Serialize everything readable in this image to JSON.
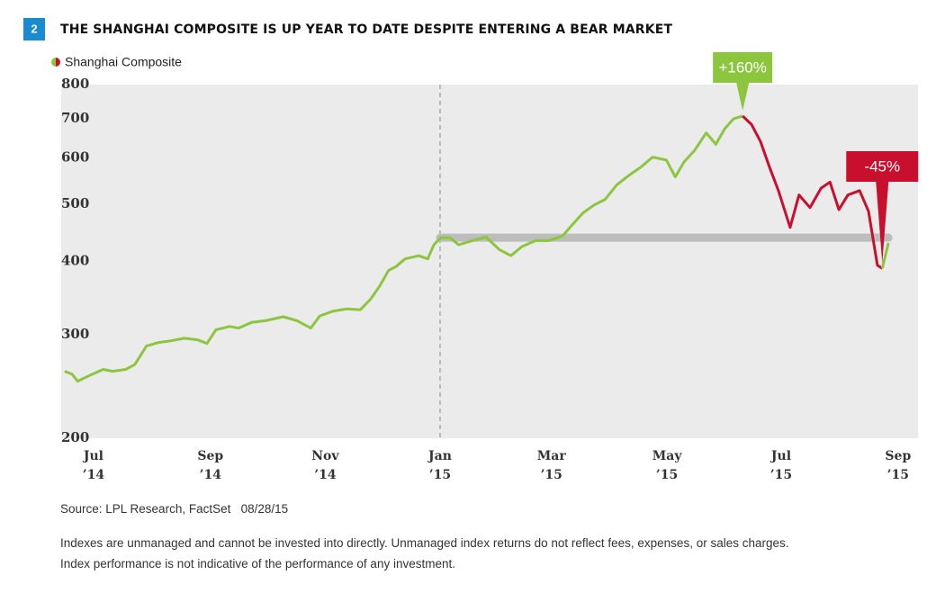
{
  "chart_data": {
    "type": "line",
    "badge": "2",
    "title": "THE SHANGHAI COMPOSITE IS UP YEAR TO DATE DESPITE ENTERING A BEAR MARKET",
    "log_scale": true,
    "grid": false,
    "legend": "top-left",
    "xlim": [
      2014.449,
      2015.695
    ],
    "ylim": [
      200,
      800
    ],
    "yticks": [
      200,
      300,
      400,
      500,
      600,
      700,
      800
    ],
    "xticks": [
      {
        "value": 2014.496,
        "label": "Jul\n’14"
      },
      {
        "value": 2014.666,
        "label": "Sep\n’14"
      },
      {
        "value": 2014.833,
        "label": "Nov\n’14"
      },
      {
        "value": 2015.0,
        "label": "Jan\n’15"
      },
      {
        "value": 2015.162,
        "label": "Mar\n’15"
      },
      {
        "value": 2015.33,
        "label": "May\n’15"
      },
      {
        "value": 2015.496,
        "label": "Jul\n’15"
      },
      {
        "value": 2015.666,
        "label": "Sep\n’15"
      }
    ],
    "reference_x": 2015.0,
    "series": [
      {
        "name": "Shanghai Composite",
        "color": [
          "#8cc63f",
          "#c8102e"
        ],
        "x": [
          2014.454,
          2014.465,
          2014.473,
          2014.491,
          2014.51,
          2014.524,
          2014.543,
          2014.556,
          2014.573,
          2014.59,
          2014.609,
          2014.628,
          2014.648,
          2014.661,
          2014.674,
          2014.694,
          2014.707,
          2014.726,
          2014.746,
          2014.772,
          2014.792,
          2014.812,
          2014.825,
          2014.844,
          2014.864,
          2014.884,
          2014.899,
          2014.912,
          2014.925,
          2014.936,
          2014.949,
          2014.969,
          2014.982,
          2014.991,
          2015.001,
          2015.014,
          2015.027,
          2015.047,
          2015.067,
          2015.086,
          2015.103,
          2015.119,
          2015.139,
          2015.158,
          2015.178,
          2015.191,
          2015.208,
          2015.224,
          2015.24,
          2015.257,
          2015.276,
          2015.292,
          2015.309,
          2015.329,
          2015.342,
          2015.355,
          2015.37,
          2015.387,
          2015.401,
          2015.414,
          2015.427,
          2015.44,
          2015.453,
          2015.466,
          2015.479,
          2015.492,
          2015.509,
          2015.522,
          2015.538,
          2015.554,
          2015.567,
          2015.58,
          2015.593,
          2015.61,
          2015.623,
          2015.636,
          2015.643,
          2015.652
        ],
        "values": [
          260,
          257,
          250,
          256,
          262,
          260,
          262,
          267,
          287,
          291,
          293,
          296,
          294,
          290,
          306,
          310,
          308,
          315,
          317,
          322,
          317,
          308,
          323,
          329,
          332,
          331,
          345,
          363,
          386,
          392,
          404,
          409,
          404,
          427,
          439,
          439,
          427,
          434,
          440,
          419,
          409,
          424,
          434,
          434,
          442,
          460,
          484,
          499,
          510,
          540,
          562,
          579,
          602,
          595,
          557,
          591,
          618,
          662,
          633,
          673,
          700,
          707,
          684,
          640,
          579,
          528,
          457,
          519,
          494,
          533,
          546,
          490,
          519,
          528,
          487,
          394,
          389,
          430
        ]
      }
    ],
    "annotations": [
      {
        "text": "+160%"
      },
      {
        "text": "-45%"
      }
    ],
    "source": "Source: LPL Research, FactSet   08/28/15",
    "notes": [
      "Indexes are unmanaged and cannot be invested into directly. Unmanaged index returns do not reflect fees, expenses, or sales charges.",
      "Index performance is not indicative of the performance of any investment."
    ]
  }
}
